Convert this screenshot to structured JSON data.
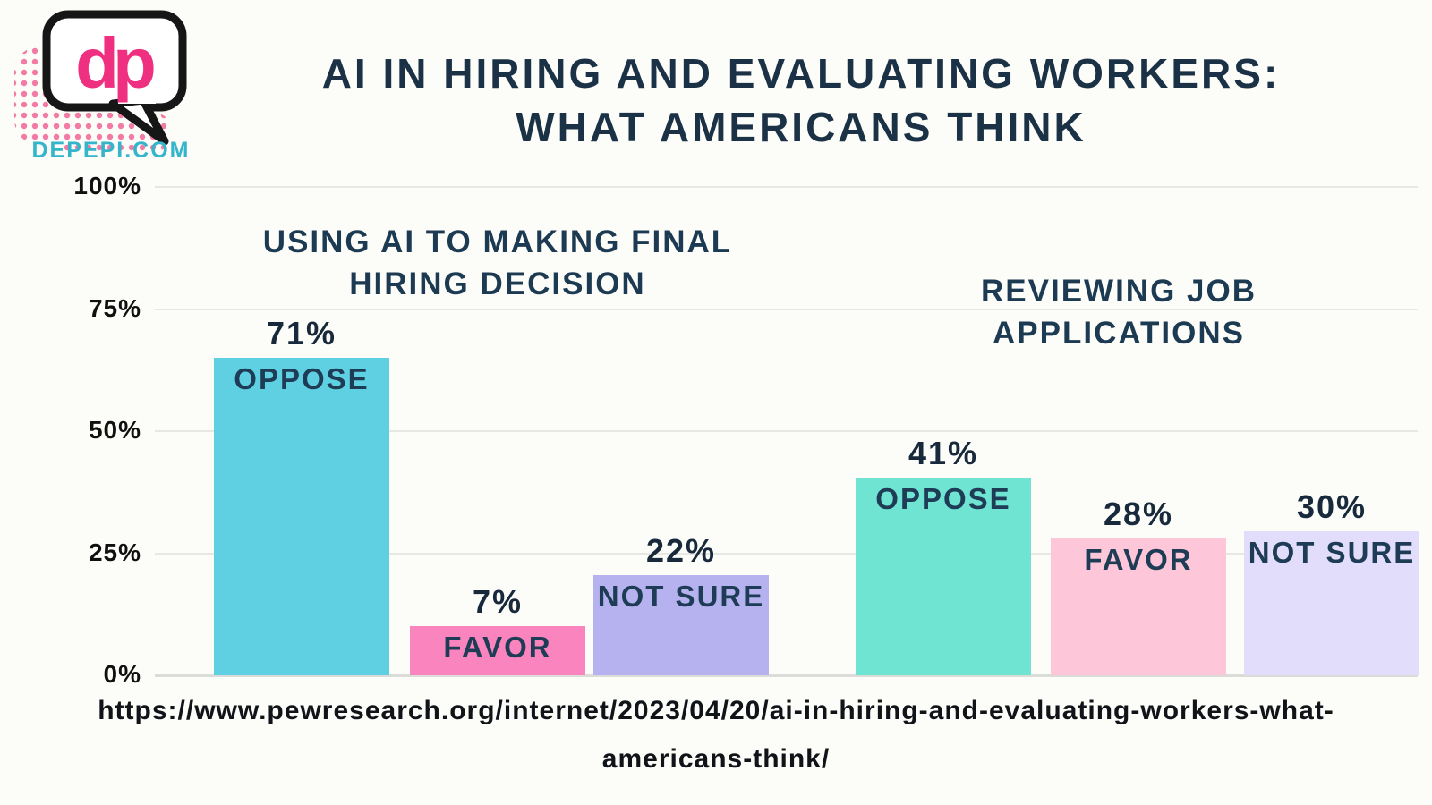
{
  "logo": {
    "monogram": "dp",
    "site": "DEPEPI.COM",
    "monogram_color": "#ef2f7f",
    "site_color": "#35b5c9",
    "bubble_outline_color": "#161616",
    "halftone_color": "#f27ba6"
  },
  "title": {
    "line1": "AI IN HIRING AND EVALUATING WORKERS:",
    "line2": "WHAT AMERICANS THINK",
    "color": "#1b3246"
  },
  "source": {
    "line1": "https://www.pewresearch.org/internet/2023/04/20/ai-in-hiring-and-evaluating-workers-what-",
    "line2": "americans-think/",
    "full_url": "https://www.pewresearch.org/internet/2023/04/20/ai-in-hiring-and-evaluating-workers-what-americans-think/"
  },
  "chart_data": {
    "type": "bar",
    "title": "AI in hiring and evaluating workers: What Americans think",
    "xlabel": "",
    "ylabel": "",
    "ylim": [
      0,
      100
    ],
    "grid": true,
    "yticks": [
      {
        "label": "100%",
        "value": 100
      },
      {
        "label": "75%",
        "value": 75
      },
      {
        "label": "50%",
        "value": 50
      },
      {
        "label": "25%",
        "value": 25
      },
      {
        "label": "0%",
        "value": 0
      }
    ],
    "groups": [
      {
        "name": "Using AI to making final hiring decision",
        "title_line1": "USING AI TO MAKING FINAL",
        "title_line2": "HIRING DECISION",
        "bars": [
          {
            "category": "Oppose",
            "label": "OPPOSE",
            "value": 71,
            "value_label": "71%",
            "color": "#5fd0e2",
            "drawn_pct": 65
          },
          {
            "category": "Favor",
            "label": "FAVOR",
            "value": 7,
            "value_label": "7%",
            "color": "#fa85be",
            "drawn_pct": 10
          },
          {
            "category": "Not sure",
            "label": "NOT SURE",
            "value": 22,
            "value_label": "22%",
            "color": "#b5b2ef",
            "drawn_pct": 20.5
          }
        ]
      },
      {
        "name": "Reviewing job applications",
        "title_line1": "REVIEWING JOB APPLICATIONS",
        "title_line2": "",
        "bars": [
          {
            "category": "Oppose",
            "label": "OPPOSE",
            "value": 41,
            "value_label": "41%",
            "color": "#70e4d2",
            "drawn_pct": 40.5
          },
          {
            "category": "Favor",
            "label": "FAVOR",
            "value": 28,
            "value_label": "28%",
            "color": "#fec7d9",
            "drawn_pct": 28
          },
          {
            "category": "Not sure",
            "label": "NOT SURE",
            "value": 30,
            "value_label": "30%",
            "color": "#e1ddfb",
            "drawn_pct": 29.5
          }
        ]
      }
    ]
  }
}
